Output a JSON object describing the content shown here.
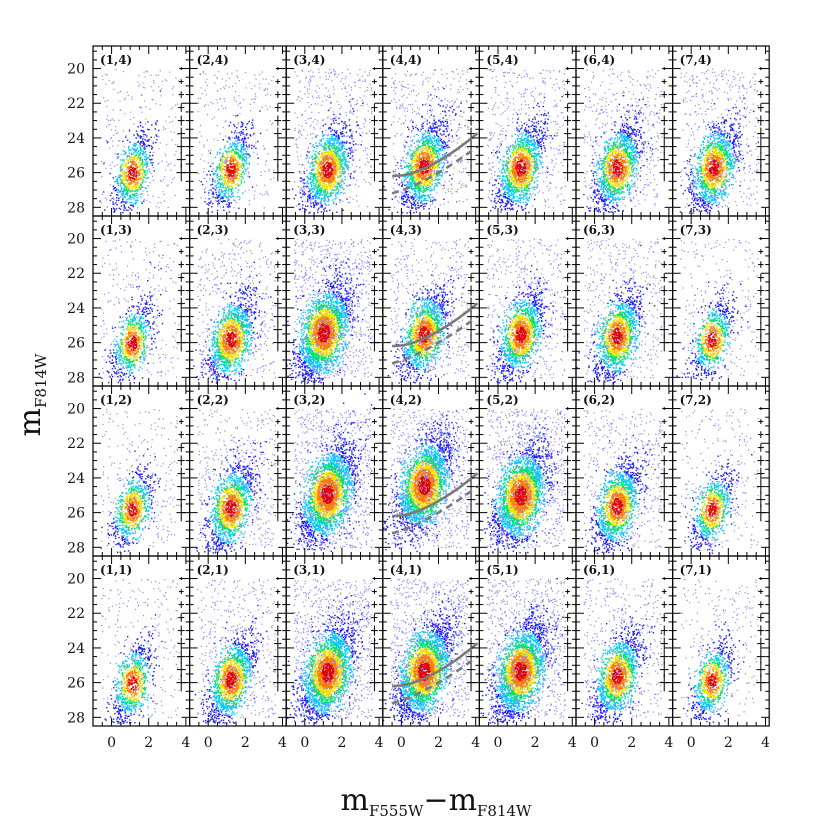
{
  "figure": {
    "ylabel_main": "m",
    "ylabel_sub": "F814W",
    "xlabel_m1": "m",
    "xlabel_sub1": "F555W",
    "xlabel_dash": "−",
    "xlabel_m2": "m",
    "xlabel_sub2": "F814W"
  },
  "chart_data": {
    "type": "scatter",
    "grid_layout": {
      "columns": 7,
      "rows": 4
    },
    "xlabel": "mF555W−mF814W",
    "ylabel": "mF814W",
    "xlim": [
      -1,
      4.2
    ],
    "ylim": [
      28.5,
      18.7
    ],
    "y_inverted": true,
    "x_ticks": [
      0,
      2,
      4
    ],
    "x_tick_labels": [
      "0",
      "2",
      "4"
    ],
    "y_ticks": [
      20,
      22,
      24,
      26,
      28
    ],
    "y_tick_labels": [
      "20",
      "22",
      "24",
      "26",
      "28"
    ],
    "colormap": [
      "#1a1aff",
      "#00c8ff",
      "#00e070",
      "#f0e000",
      "#ff7a00",
      "#e00000"
    ],
    "error_bar_color": "#000000",
    "model_curve_color": "#7a7a7a",
    "panels": [
      {
        "label": "(1,4)",
        "col": 1,
        "row": 4,
        "density": "low",
        "mean_color": 1.1,
        "mean_mag": 26.0,
        "model_curves": false
      },
      {
        "label": "(2,4)",
        "col": 2,
        "row": 4,
        "density": "low",
        "mean_color": 1.2,
        "mean_mag": 25.8,
        "model_curves": false
      },
      {
        "label": "(3,4)",
        "col": 3,
        "row": 4,
        "density": "medium",
        "mean_color": 1.2,
        "mean_mag": 25.8,
        "model_curves": false
      },
      {
        "label": "(4,4)",
        "col": 4,
        "row": 4,
        "density": "medium",
        "mean_color": 1.2,
        "mean_mag": 25.6,
        "model_curves": true
      },
      {
        "label": "(5,4)",
        "col": 5,
        "row": 4,
        "density": "medium",
        "mean_color": 1.2,
        "mean_mag": 25.7,
        "model_curves": false
      },
      {
        "label": "(6,4)",
        "col": 6,
        "row": 4,
        "density": "medium",
        "mean_color": 1.2,
        "mean_mag": 25.7,
        "model_curves": false
      },
      {
        "label": "(7,4)",
        "col": 7,
        "row": 4,
        "density": "medium",
        "mean_color": 1.2,
        "mean_mag": 25.7,
        "model_curves": false
      },
      {
        "label": "(1,3)",
        "col": 1,
        "row": 3,
        "density": "low",
        "mean_color": 1.1,
        "mean_mag": 26.0,
        "model_curves": false
      },
      {
        "label": "(2,3)",
        "col": 2,
        "row": 3,
        "density": "medium",
        "mean_color": 1.2,
        "mean_mag": 25.8,
        "model_curves": false
      },
      {
        "label": "(3,3)",
        "col": 3,
        "row": 3,
        "density": "high",
        "mean_color": 1.0,
        "mean_mag": 25.4,
        "model_curves": false
      },
      {
        "label": "(4,3)",
        "col": 4,
        "row": 3,
        "density": "medium",
        "mean_color": 1.2,
        "mean_mag": 25.5,
        "model_curves": true
      },
      {
        "label": "(5,3)",
        "col": 5,
        "row": 3,
        "density": "medium",
        "mean_color": 1.2,
        "mean_mag": 25.5,
        "model_curves": false
      },
      {
        "label": "(6,3)",
        "col": 6,
        "row": 3,
        "density": "medium",
        "mean_color": 1.2,
        "mean_mag": 25.6,
        "model_curves": false
      },
      {
        "label": "(7,3)",
        "col": 7,
        "row": 3,
        "density": "low",
        "mean_color": 1.1,
        "mean_mag": 25.8,
        "model_curves": false
      },
      {
        "label": "(1,2)",
        "col": 1,
        "row": 2,
        "density": "low",
        "mean_color": 1.1,
        "mean_mag": 25.8,
        "model_curves": false
      },
      {
        "label": "(2,2)",
        "col": 2,
        "row": 2,
        "density": "medium",
        "mean_color": 1.2,
        "mean_mag": 25.7,
        "model_curves": false
      },
      {
        "label": "(3,2)",
        "col": 3,
        "row": 2,
        "density": "high",
        "mean_color": 1.2,
        "mean_mag": 24.9,
        "model_curves": false
      },
      {
        "label": "(4,2)",
        "col": 4,
        "row": 2,
        "density": "high",
        "mean_color": 1.2,
        "mean_mag": 24.4,
        "model_curves": true
      },
      {
        "label": "(5,2)",
        "col": 5,
        "row": 2,
        "density": "high",
        "mean_color": 1.2,
        "mean_mag": 25.0,
        "model_curves": false
      },
      {
        "label": "(6,2)",
        "col": 6,
        "row": 2,
        "density": "medium",
        "mean_color": 1.2,
        "mean_mag": 25.6,
        "model_curves": false
      },
      {
        "label": "(7,2)",
        "col": 7,
        "row": 2,
        "density": "low",
        "mean_color": 1.1,
        "mean_mag": 25.8,
        "model_curves": false
      },
      {
        "label": "(1,1)",
        "col": 1,
        "row": 1,
        "density": "low",
        "mean_color": 1.1,
        "mean_mag": 26.0,
        "model_curves": false
      },
      {
        "label": "(2,1)",
        "col": 2,
        "row": 1,
        "density": "medium",
        "mean_color": 1.2,
        "mean_mag": 25.8,
        "model_curves": false
      },
      {
        "label": "(3,1)",
        "col": 3,
        "row": 1,
        "density": "high",
        "mean_color": 1.2,
        "mean_mag": 25.4,
        "model_curves": false
      },
      {
        "label": "(4,1)",
        "col": 4,
        "row": 1,
        "density": "high",
        "mean_color": 1.2,
        "mean_mag": 25.3,
        "model_curves": true
      },
      {
        "label": "(5,1)",
        "col": 5,
        "row": 1,
        "density": "high",
        "mean_color": 1.2,
        "mean_mag": 25.3,
        "model_curves": false
      },
      {
        "label": "(6,1)",
        "col": 6,
        "row": 1,
        "density": "medium",
        "mean_color": 1.2,
        "mean_mag": 25.6,
        "model_curves": false
      },
      {
        "label": "(7,1)",
        "col": 7,
        "row": 1,
        "density": "low",
        "mean_color": 1.1,
        "mean_mag": 25.9,
        "model_curves": false
      }
    ]
  }
}
